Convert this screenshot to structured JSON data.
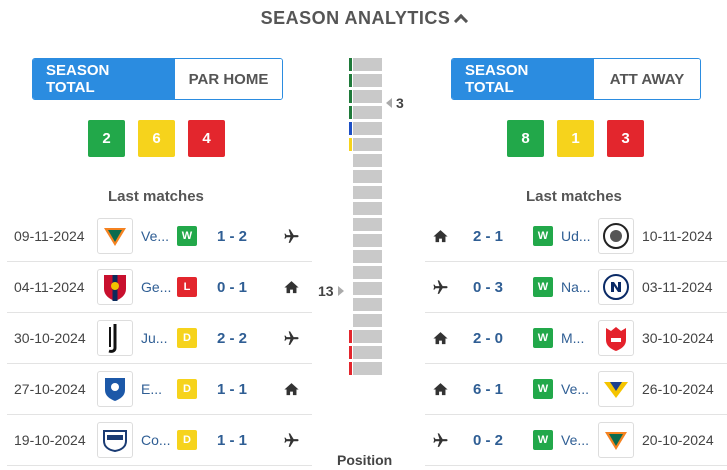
{
  "header": {
    "title": "SEASON ANALYTICS"
  },
  "left": {
    "tabs": [
      "SEASON TOTAL",
      "PAR HOME"
    ],
    "stats": {
      "wins": "2",
      "draws": "6",
      "losses": "4"
    },
    "last_matches_title": "Last matches",
    "matches": [
      {
        "date": "09-11-2024",
        "team": "Venezia",
        "logo": "venezia-logo",
        "result": "W",
        "score": "1 - 2",
        "venue": "away-plane-icon"
      },
      {
        "date": "04-11-2024",
        "team": "Genoa",
        "logo": "genoa-logo",
        "result": "L",
        "score": "0 - 1",
        "venue": "home-house-icon"
      },
      {
        "date": "30-10-2024",
        "team": "Juventus",
        "logo": "juventus-logo",
        "result": "D",
        "score": "2 - 2",
        "venue": "away-plane-icon"
      },
      {
        "date": "27-10-2024",
        "team": "Empoli",
        "logo": "empoli-logo",
        "result": "D",
        "score": "1 - 1",
        "venue": "home-house-icon"
      },
      {
        "date": "19-10-2024",
        "team": "Como",
        "logo": "como-logo",
        "result": "D",
        "score": "1 - 1",
        "venue": "away-plane-icon"
      }
    ],
    "team_display": [
      "Ve...",
      "Ge...",
      "Ju...",
      "E...",
      "Co..."
    ]
  },
  "right": {
    "tabs": [
      "SEASON TOTAL",
      "ATT AWAY"
    ],
    "stats": {
      "wins": "8",
      "draws": "1",
      "losses": "3"
    },
    "last_matches_title": "Last matches",
    "matches": [
      {
        "date": "10-11-2024",
        "team": "Udinese",
        "logo": "udinese-logo",
        "result": "W",
        "score": "2 - 1",
        "venue": "home-house-icon"
      },
      {
        "date": "03-11-2024",
        "team": "Napoli",
        "logo": "napoli-logo",
        "result": "W",
        "score": "0 - 3",
        "venue": "away-plane-icon"
      },
      {
        "date": "30-10-2024",
        "team": "Monza",
        "logo": "monza-logo",
        "result": "W",
        "score": "2 - 0",
        "venue": "home-house-icon"
      },
      {
        "date": "26-10-2024",
        "team": "Verona",
        "logo": "verona-logo",
        "result": "W",
        "score": "6 - 1",
        "venue": "home-house-icon"
      },
      {
        "date": "20-10-2024",
        "team": "Venezia",
        "logo": "venezia-logo",
        "result": "W",
        "score": "0 - 2",
        "venue": "away-plane-icon"
      }
    ],
    "team_display": [
      "Ud...",
      "Na...",
      "M...",
      "Ve...",
      "Ve..."
    ]
  },
  "position": {
    "title": "Position",
    "right_team_position": "3",
    "left_team_position": "13",
    "total_positions": 20,
    "markers": [
      {
        "pos": 1,
        "color": "#1f7a3a"
      },
      {
        "pos": 2,
        "color": "#1f7a3a"
      },
      {
        "pos": 3,
        "color": "#1f7a3a"
      },
      {
        "pos": 4,
        "color": "#1f7a3a"
      },
      {
        "pos": 5,
        "color": "#1d4fc4"
      },
      {
        "pos": 6,
        "color": "#f6d31c"
      },
      {
        "pos": 18,
        "color": "#e3262d"
      },
      {
        "pos": 19,
        "color": "#e3262d"
      },
      {
        "pos": 20,
        "color": "#e3262d"
      }
    ]
  },
  "colors": {
    "accent": "#2b8ce0",
    "win": "#22a84a",
    "draw": "#f6d31c",
    "loss": "#e3262d",
    "link": "#2f5e94"
  }
}
